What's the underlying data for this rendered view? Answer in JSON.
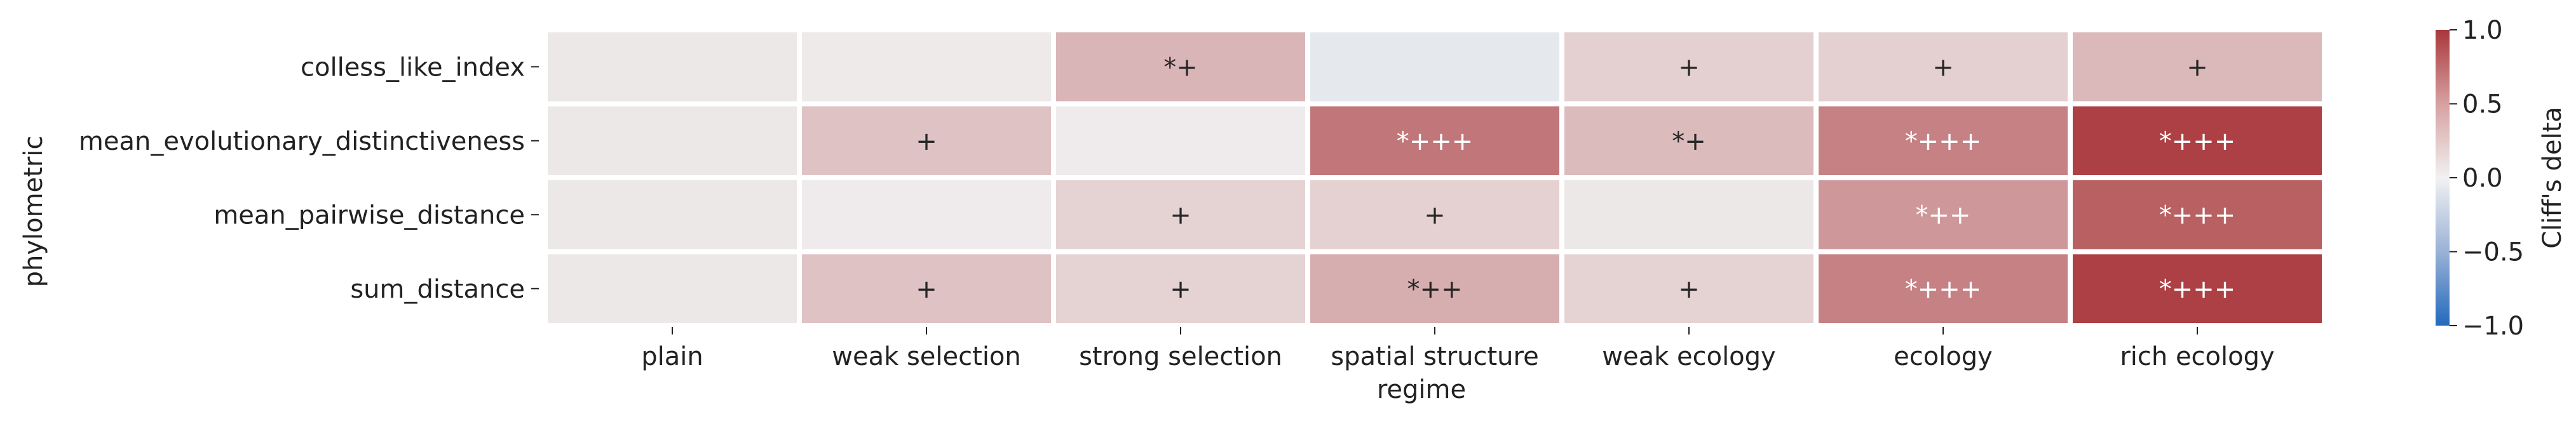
{
  "chart_data": {
    "type": "heatmap",
    "xlabel": "regime",
    "ylabel": "phylometric",
    "x_categories": [
      "plain",
      "weak selection",
      "strong selection",
      "spatial structure",
      "weak ecology",
      "ecology",
      "rich ecology"
    ],
    "y_categories": [
      "colless_like_index",
      "mean_evolutionary_distinctiveness",
      "mean_pairwise_distance",
      "sum_distance"
    ],
    "values": [
      [
        0.05,
        0.04,
        0.32,
        -0.06,
        0.18,
        0.18,
        0.3
      ],
      [
        0.05,
        0.25,
        0.03,
        0.66,
        0.29,
        0.6,
        0.95
      ],
      [
        0.05,
        0.03,
        0.16,
        0.17,
        0.05,
        0.48,
        0.78
      ],
      [
        0.05,
        0.25,
        0.16,
        0.36,
        0.16,
        0.6,
        0.95
      ]
    ],
    "annotations": [
      [
        "",
        "",
        "*+",
        "",
        "+",
        "+",
        "+"
      ],
      [
        "",
        "+",
        "",
        "*+++",
        "*+",
        "*+++",
        "*+++"
      ],
      [
        "",
        "",
        "+",
        "+",
        "",
        "*++",
        "*+++"
      ],
      [
        "",
        "+",
        "+",
        "*++",
        "+",
        "*+++",
        "*+++"
      ]
    ],
    "colorbar": {
      "label": "Cliff's delta",
      "range": [
        -1.0,
        1.0
      ],
      "ticks": [
        "-1.0",
        "-0.5",
        "0.0",
        "0.5",
        "1.0"
      ],
      "colormap": "vlag",
      "low_color": "#2369bd",
      "mid_color": "#f1f1f1",
      "high_color": "#a9373b"
    }
  }
}
